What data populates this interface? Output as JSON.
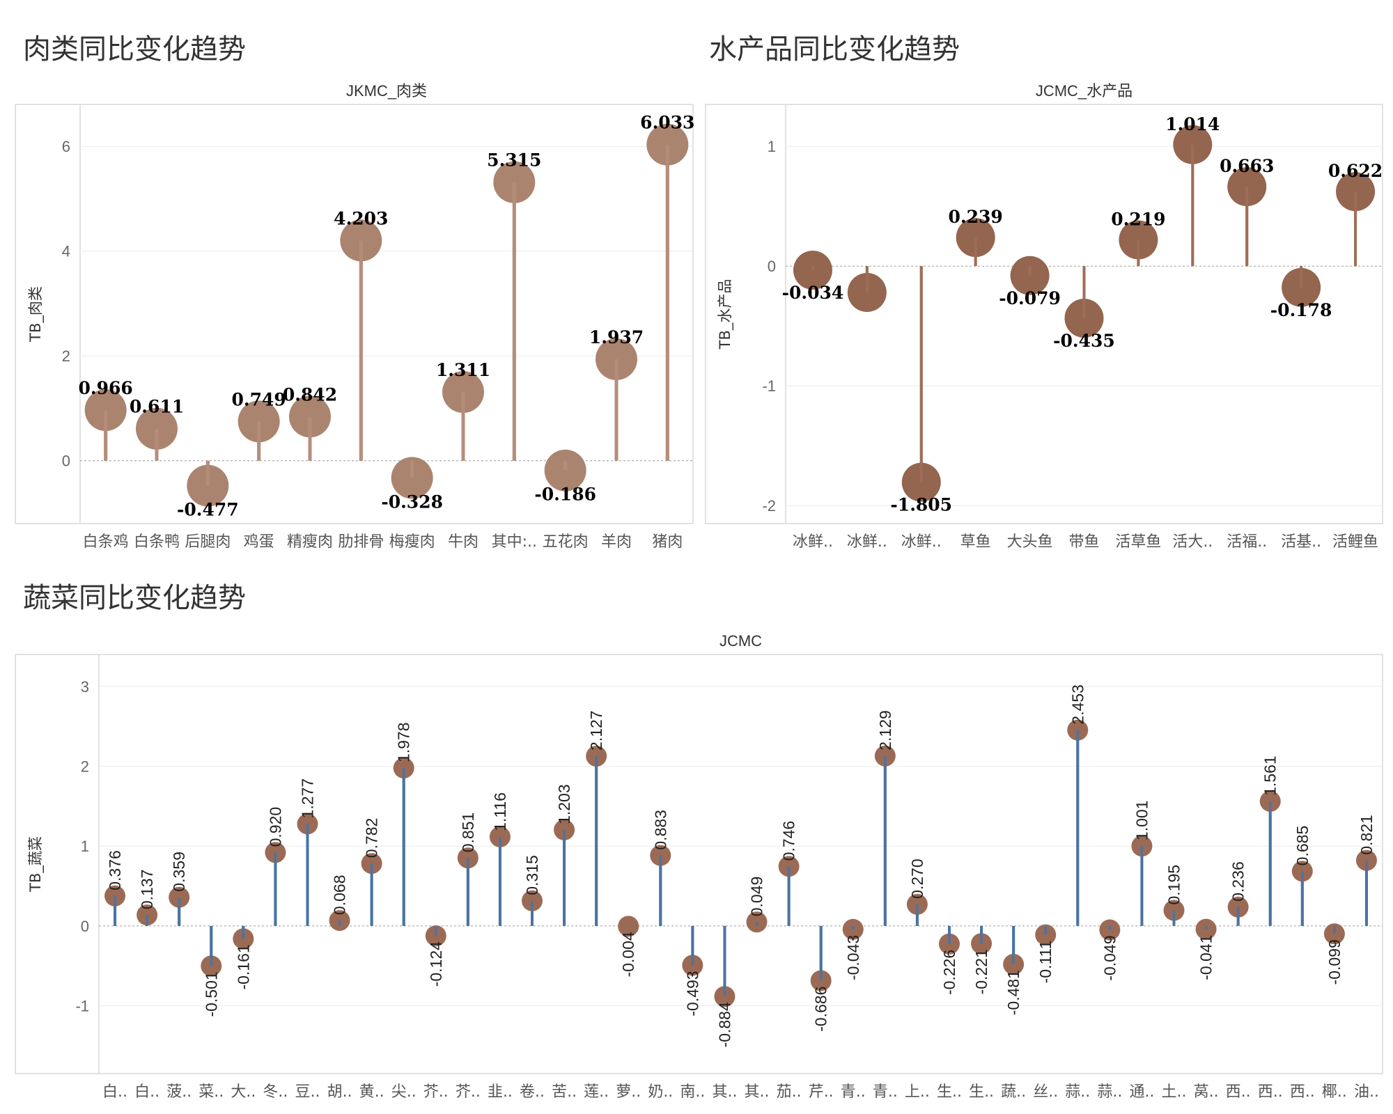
{
  "dashboard": {
    "meat_title": "肉类同比变化趋势",
    "aqua_title": "水产品同比变化趋势",
    "veg_title": "蔬菜同比变化趋势"
  },
  "chart_data": [
    {
      "id": "meat",
      "type": "lollipop",
      "title": "JKMC_肉类",
      "ylabel": "TB_肉类",
      "ylim": [
        -1.2,
        6.8
      ],
      "yticks": [
        0,
        2,
        4,
        6
      ],
      "categories": [
        "白条鸡",
        "白条鸭",
        "后腿肉",
        "鸡蛋",
        "精瘦肉",
        "肋排骨",
        "梅瘦肉",
        "牛肉",
        "其中:..",
        "五花肉",
        "羊肉",
        "猪肉"
      ],
      "values": [
        0.966,
        0.611,
        -0.477,
        0.749,
        0.842,
        4.203,
        -0.328,
        1.311,
        5.315,
        -0.186,
        1.937,
        6.033
      ],
      "labels": [
        "0.966",
        "0.611",
        "-0.477",
        "0.749",
        "0.842",
        "4.203",
        "-0.328",
        "1.311",
        "5.315",
        "-0.186",
        "1.937",
        "6.033"
      ],
      "colors": {
        "stem": "#b58e7b",
        "dot": "#ab8470"
      }
    },
    {
      "id": "aqua",
      "type": "lollipop",
      "title": "JCMC_水产品",
      "ylabel": "TB_水产品",
      "ylim": [
        -2.15,
        1.35
      ],
      "yticks": [
        -2,
        -1,
        0,
        1
      ],
      "categories": [
        "冰鲜..",
        "冰鲜..",
        "冰鲜..",
        "草鱼",
        "大头鱼",
        "带鱼",
        "活草鱼",
        "活大..",
        "活福..",
        "活基..",
        "活鲤鱼"
      ],
      "values": [
        -0.034,
        -0.22,
        -1.805,
        0.239,
        -0.079,
        -0.435,
        0.219,
        1.014,
        0.663,
        -0.178,
        0.622
      ],
      "labels": [
        "-0.034",
        "",
        "-1.805",
        "0.239",
        "-0.079",
        "-0.435",
        "0.219",
        "1.014",
        "0.663",
        "-0.178",
        "0.622"
      ],
      "colors": {
        "stem": "#9f6e58",
        "dot": "#94654f"
      }
    },
    {
      "id": "veg",
      "type": "lollipop",
      "title": "JCMC",
      "ylabel": "TB_蔬菜",
      "ylim": [
        -1.85,
        3.4
      ],
      "yticks": [
        -1,
        0,
        1,
        2,
        3
      ],
      "categories": [
        "白..",
        "白..",
        "菠..",
        "菜..",
        "大..",
        "冬..",
        "豆..",
        "胡..",
        "黄..",
        "尖..",
        "芥..",
        "芥..",
        "韭..",
        "卷..",
        "苦..",
        "莲..",
        "萝..",
        "奶..",
        "南..",
        "其..",
        "其..",
        "茄..",
        "芹..",
        "青..",
        "青..",
        "上..",
        "生..",
        "生..",
        "蔬..",
        "丝..",
        "蒜..",
        "蒜..",
        "通..",
        "土..",
        "莴..",
        "西..",
        "西..",
        "西..",
        "椰..",
        "油.."
      ],
      "values": [
        0.376,
        0.137,
        0.359,
        -0.501,
        -0.161,
        0.92,
        1.277,
        0.068,
        0.782,
        1.978,
        -0.124,
        0.851,
        1.116,
        0.315,
        1.203,
        2.127,
        -0.004,
        0.883,
        -0.493,
        -0.884,
        0.049,
        0.746,
        -0.686,
        -0.043,
        2.129,
        0.27,
        -0.226,
        -0.221,
        -0.481,
        -0.111,
        2.453,
        -0.049,
        1.001,
        0.195,
        -0.041,
        0.236,
        1.561,
        0.685,
        -0.099,
        0.821
      ],
      "labels": [
        "0.376",
        "0.137",
        "0.359",
        "-0.501",
        "-0.161",
        "0.920",
        "1.277",
        "0.068",
        "0.782",
        "1.978",
        "-0.124",
        "0.851",
        "1.116",
        "0.315",
        "1.203",
        "2.127",
        "-0.004",
        "0.883",
        "-0.493",
        "-0.884",
        "0.049",
        "0.746",
        "-0.686",
        "-0.043",
        "2.129",
        "0.270",
        "-0.226",
        "-0.221",
        "-0.481",
        "-0.111",
        "2.453",
        "-0.049",
        "1.001",
        "0.195",
        "-0.041",
        "0.236",
        "1.561",
        "0.685",
        "-0.099",
        "0.821"
      ],
      "colors": {
        "stem": "#4a73a3",
        "dot": "#9b6a55"
      }
    }
  ]
}
